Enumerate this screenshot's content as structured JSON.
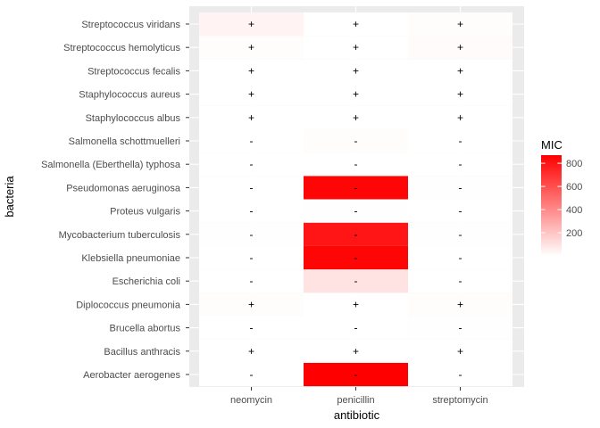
{
  "chart_data": {
    "type": "heatmap",
    "xlabel": "antibiotic",
    "ylabel": "bacteria",
    "x_categories": [
      "neomycin",
      "penicillin",
      "streptomycin"
    ],
    "y_categories": [
      "Aerobacter aerogenes",
      "Bacillus anthracis",
      "Brucella abortus",
      "Diplococcus pneumonia",
      "Escherichia coli",
      "Klebsiella pneumoniae",
      "Mycobacterium tuberculosis",
      "Proteus vulgaris",
      "Pseudomonas aeruginosa",
      "Salmonella (Eberthella) typhosa",
      "Salmonella schottmuelleri",
      "Staphylococcus albus",
      "Staphylococcus aureus",
      "Streptococcus fecalis",
      "Streptococcus hemolyticus",
      "Streptococcus viridans"
    ],
    "cells": [
      {
        "bacteria": "Aerobacter aerogenes",
        "antibiotic": "neomycin",
        "mic": 1.6,
        "label": "-"
      },
      {
        "bacteria": "Aerobacter aerogenes",
        "antibiotic": "penicillin",
        "mic": 870,
        "label": "-"
      },
      {
        "bacteria": "Aerobacter aerogenes",
        "antibiotic": "streptomycin",
        "mic": 1,
        "label": "-"
      },
      {
        "bacteria": "Bacillus anthracis",
        "antibiotic": "neomycin",
        "mic": 0.007,
        "label": "+"
      },
      {
        "bacteria": "Bacillus anthracis",
        "antibiotic": "penicillin",
        "mic": 0.001,
        "label": "+"
      },
      {
        "bacteria": "Bacillus anthracis",
        "antibiotic": "streptomycin",
        "mic": 0.01,
        "label": "+"
      },
      {
        "bacteria": "Brucella abortus",
        "antibiotic": "neomycin",
        "mic": 0.02,
        "label": "-"
      },
      {
        "bacteria": "Brucella abortus",
        "antibiotic": "penicillin",
        "mic": 1,
        "label": "-"
      },
      {
        "bacteria": "Brucella abortus",
        "antibiotic": "streptomycin",
        "mic": 2,
        "label": "-"
      },
      {
        "bacteria": "Diplococcus pneumonia",
        "antibiotic": "neomycin",
        "mic": 10,
        "label": "+"
      },
      {
        "bacteria": "Diplococcus pneumonia",
        "antibiotic": "penicillin",
        "mic": 0.005,
        "label": "+"
      },
      {
        "bacteria": "Diplococcus pneumonia",
        "antibiotic": "streptomycin",
        "mic": 11,
        "label": "+"
      },
      {
        "bacteria": "Escherichia coli",
        "antibiotic": "neomycin",
        "mic": 0.1,
        "label": "-"
      },
      {
        "bacteria": "Escherichia coli",
        "antibiotic": "penicillin",
        "mic": 100,
        "label": "-"
      },
      {
        "bacteria": "Escherichia coli",
        "antibiotic": "streptomycin",
        "mic": 0.4,
        "label": "-"
      },
      {
        "bacteria": "Klebsiella pneumoniae",
        "antibiotic": "neomycin",
        "mic": 1,
        "label": "-"
      },
      {
        "bacteria": "Klebsiella pneumoniae",
        "antibiotic": "penicillin",
        "mic": 850,
        "label": "-"
      },
      {
        "bacteria": "Klebsiella pneumoniae",
        "antibiotic": "streptomycin",
        "mic": 1.2,
        "label": "-"
      },
      {
        "bacteria": "Mycobacterium tuberculosis",
        "antibiotic": "neomycin",
        "mic": 2,
        "label": "-"
      },
      {
        "bacteria": "Mycobacterium tuberculosis",
        "antibiotic": "penicillin",
        "mic": 800,
        "label": "-"
      },
      {
        "bacteria": "Mycobacterium tuberculosis",
        "antibiotic": "streptomycin",
        "mic": 5,
        "label": "-"
      },
      {
        "bacteria": "Proteus vulgaris",
        "antibiotic": "neomycin",
        "mic": 0.1,
        "label": "-"
      },
      {
        "bacteria": "Proteus vulgaris",
        "antibiotic": "penicillin",
        "mic": 3,
        "label": "-"
      },
      {
        "bacteria": "Proteus vulgaris",
        "antibiotic": "streptomycin",
        "mic": 0.1,
        "label": "-"
      },
      {
        "bacteria": "Pseudomonas aeruginosa",
        "antibiotic": "neomycin",
        "mic": 0.4,
        "label": "-"
      },
      {
        "bacteria": "Pseudomonas aeruginosa",
        "antibiotic": "penicillin",
        "mic": 850,
        "label": "-"
      },
      {
        "bacteria": "Pseudomonas aeruginosa",
        "antibiotic": "streptomycin",
        "mic": 2,
        "label": "-"
      },
      {
        "bacteria": "Salmonella (Eberthella) typhosa",
        "antibiotic": "neomycin",
        "mic": 0.008,
        "label": "-"
      },
      {
        "bacteria": "Salmonella (Eberthella) typhosa",
        "antibiotic": "penicillin",
        "mic": 1,
        "label": "-"
      },
      {
        "bacteria": "Salmonella (Eberthella) typhosa",
        "antibiotic": "streptomycin",
        "mic": 0.4,
        "label": "-"
      },
      {
        "bacteria": "Salmonella schottmuelleri",
        "antibiotic": "neomycin",
        "mic": 0.09,
        "label": "-"
      },
      {
        "bacteria": "Salmonella schottmuelleri",
        "antibiotic": "penicillin",
        "mic": 10,
        "label": "-"
      },
      {
        "bacteria": "Salmonella schottmuelleri",
        "antibiotic": "streptomycin",
        "mic": 0.8,
        "label": "-"
      },
      {
        "bacteria": "Staphylococcus albus",
        "antibiotic": "neomycin",
        "mic": 0.001,
        "label": "+"
      },
      {
        "bacteria": "Staphylococcus albus",
        "antibiotic": "penicillin",
        "mic": 0.007,
        "label": "+"
      },
      {
        "bacteria": "Staphylococcus albus",
        "antibiotic": "streptomycin",
        "mic": 0.1,
        "label": "+"
      },
      {
        "bacteria": "Staphylococcus aureus",
        "antibiotic": "neomycin",
        "mic": 0.001,
        "label": "+"
      },
      {
        "bacteria": "Staphylococcus aureus",
        "antibiotic": "penicillin",
        "mic": 0.03,
        "label": "+"
      },
      {
        "bacteria": "Staphylococcus aureus",
        "antibiotic": "streptomycin",
        "mic": 0.03,
        "label": "+"
      },
      {
        "bacteria": "Streptococcus fecalis",
        "antibiotic": "neomycin",
        "mic": 0.1,
        "label": "+"
      },
      {
        "bacteria": "Streptococcus fecalis",
        "antibiotic": "penicillin",
        "mic": 1,
        "label": "+"
      },
      {
        "bacteria": "Streptococcus fecalis",
        "antibiotic": "streptomycin",
        "mic": 1,
        "label": "+"
      },
      {
        "bacteria": "Streptococcus hemolyticus",
        "antibiotic": "neomycin",
        "mic": 10,
        "label": "+"
      },
      {
        "bacteria": "Streptococcus hemolyticus",
        "antibiotic": "penicillin",
        "mic": 0.001,
        "label": "+"
      },
      {
        "bacteria": "Streptococcus hemolyticus",
        "antibiotic": "streptomycin",
        "mic": 14,
        "label": "+"
      },
      {
        "bacteria": "Streptococcus viridans",
        "antibiotic": "neomycin",
        "mic": 40,
        "label": "+"
      },
      {
        "bacteria": "Streptococcus viridans",
        "antibiotic": "penicillin",
        "mic": 0.005,
        "label": "+"
      },
      {
        "bacteria": "Streptococcus viridans",
        "antibiotic": "streptomycin",
        "mic": 10,
        "label": "+"
      }
    ],
    "legend": {
      "title": "MIC",
      "ticks": [
        200,
        400,
        600,
        800
      ],
      "range": [
        0.001,
        870
      ],
      "low_color": "#ffffff",
      "high_color": "#ff0000"
    },
    "grid": true,
    "panel_background": "#ebebeb"
  }
}
